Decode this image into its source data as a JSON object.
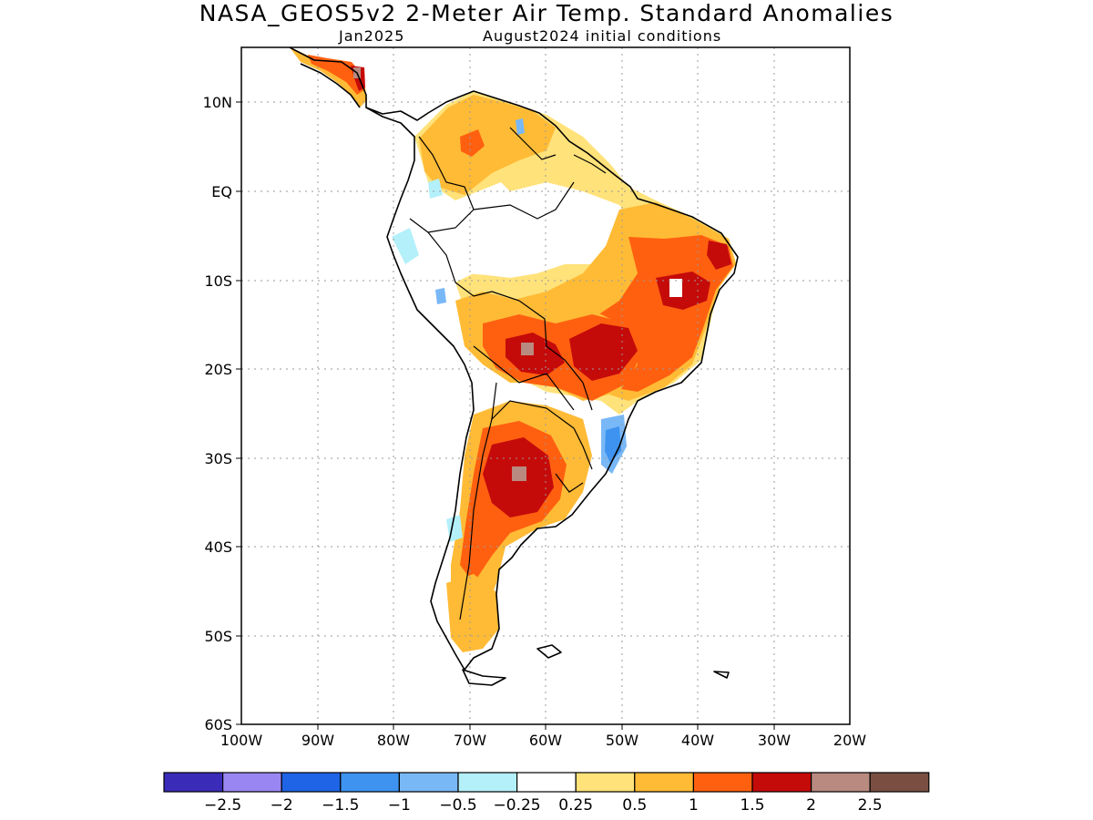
{
  "title": "NASA_GEOS5v2 2-Meter Air Temp. Standard Anomalies",
  "subtitle_left": "Jan2025",
  "subtitle_right": "August2024 initial conditions",
  "lat_labels": [
    "10N",
    "EQ",
    "10S",
    "20S",
    "30S",
    "40S",
    "50S",
    "60S"
  ],
  "lon_labels": [
    "100W",
    "90W",
    "80W",
    "70W",
    "60W",
    "50W",
    "40W",
    "30W",
    "20W"
  ],
  "legend": {
    "colors": [
      "#3a2cb8",
      "#9a86f2",
      "#1f64e6",
      "#3e93f0",
      "#79b8f7",
      "#b3f0fa",
      "#ffffff",
      "#ffe27a",
      "#ffbb36",
      "#ff6010",
      "#c50a0a",
      "#b88a80",
      "#7a4f42"
    ],
    "labels": [
      "-2.5",
      "-2",
      "-1.5",
      "-1",
      "-0.5",
      "-0.25",
      "0.25",
      "0.5",
      "1",
      "1.5",
      "2",
      "2.5"
    ]
  }
}
